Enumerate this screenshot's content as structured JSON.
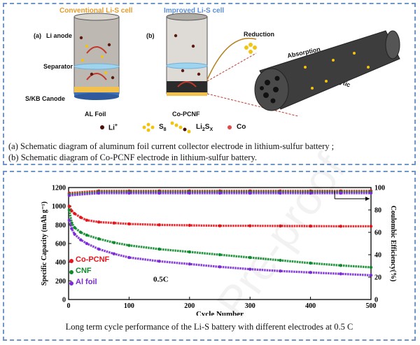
{
  "top": {
    "title_conventional": "Conventional Li-S cell",
    "title_improved": "Improved Li-S cell",
    "label_a": "(a)",
    "label_b": "(b)",
    "li_anode": "Li anode",
    "separator": "Separator",
    "cathode": "S/KB Canode",
    "al_foil": "AL Foil",
    "co_pcnf": "Co-PCNF",
    "reduction": "Reduction",
    "absorption": "Absorption",
    "catalytic": "Catalytic",
    "legend": {
      "li": "Li",
      "li_sup": "+",
      "s8": "S",
      "s8_sub": "8",
      "li2sx": "Li",
      "li2sx_sub1": "2",
      "li2sx_mid": "S",
      "li2sx_sub2": "X",
      "co": "Co"
    },
    "caption_line1": "(a) Schematic diagram of aluminum foil current collector electrode in lithium-sulfur battery ;",
    "caption_line2": "(b) Schematic diagram of  Co-PCNF electrode in lithium-sulfur battery."
  },
  "chart_data": {
    "type": "scatter",
    "xlabel": "Cycle Number",
    "ylabel_left": "Specific Capacity (mAh g⁻¹)",
    "ylabel_right": "Coulombic Efficiency(%)",
    "xlim": [
      0,
      500
    ],
    "ylim_left": [
      0,
      1200
    ],
    "ylim_right": [
      0,
      100
    ],
    "xticks": [
      0,
      100,
      200,
      300,
      400,
      500
    ],
    "yticks_left": [
      0,
      200,
      400,
      600,
      800,
      1000,
      1200
    ],
    "yticks_right": [
      0,
      20,
      40,
      60,
      80,
      100
    ],
    "annotation": "0.5C",
    "legend_placement": "bottom-left",
    "series": [
      {
        "name": "Co-PCNF",
        "color": "#e8121a",
        "axis": "left",
        "x": [
          1,
          5,
          10,
          20,
          30,
          50,
          75,
          100,
          150,
          200,
          250,
          300,
          350,
          400,
          450,
          500
        ],
        "y": [
          1000,
          950,
          920,
          880,
          850,
          830,
          820,
          810,
          800,
          795,
          790,
          790,
          788,
          787,
          785,
          785
        ]
      },
      {
        "name": "CNF",
        "color": "#0f8a2e",
        "axis": "left",
        "x": [
          1,
          5,
          10,
          20,
          30,
          50,
          75,
          100,
          150,
          200,
          250,
          300,
          350,
          400,
          450,
          500
        ],
        "y": [
          960,
          820,
          770,
          720,
          690,
          650,
          610,
          580,
          540,
          510,
          480,
          450,
          420,
          390,
          365,
          345
        ]
      },
      {
        "name": "Al foil",
        "color": "#7a2bd6",
        "axis": "left",
        "x": [
          1,
          5,
          10,
          20,
          30,
          50,
          75,
          100,
          150,
          200,
          250,
          300,
          350,
          400,
          450,
          500
        ],
        "y": [
          850,
          760,
          700,
          640,
          600,
          540,
          490,
          450,
          410,
          380,
          350,
          325,
          305,
          290,
          275,
          260
        ]
      },
      {
        "name": "Co-PCNF CE",
        "color": "#e8121a",
        "axis": "right",
        "x": [
          1,
          50,
          100,
          150,
          200,
          250,
          300,
          350,
          400,
          450,
          500
        ],
        "y": [
          95,
          97,
          97,
          97,
          97,
          97,
          97,
          97,
          97,
          97,
          97
        ]
      },
      {
        "name": "CNF CE",
        "color": "#0f8a2e",
        "axis": "right",
        "x": [
          1,
          50,
          100,
          150,
          200,
          250,
          300,
          350,
          400,
          450,
          500
        ],
        "y": [
          94,
          96,
          96,
          96,
          96,
          96,
          96,
          96,
          96,
          96,
          96
        ]
      },
      {
        "name": "Al foil CE",
        "color": "#7a2bd6",
        "axis": "right",
        "x": [
          1,
          50,
          100,
          150,
          200,
          250,
          300,
          350,
          400,
          450,
          500
        ],
        "y": [
          93,
          95,
          95,
          95,
          95,
          95,
          95,
          95,
          95,
          95,
          95
        ]
      }
    ]
  },
  "bottom": {
    "legend": [
      "Co-PCNF",
      "CNF",
      "Al foil"
    ],
    "caption": "Long term cycle performance of the Li-S battery with different electrodes at 0.5 C"
  }
}
